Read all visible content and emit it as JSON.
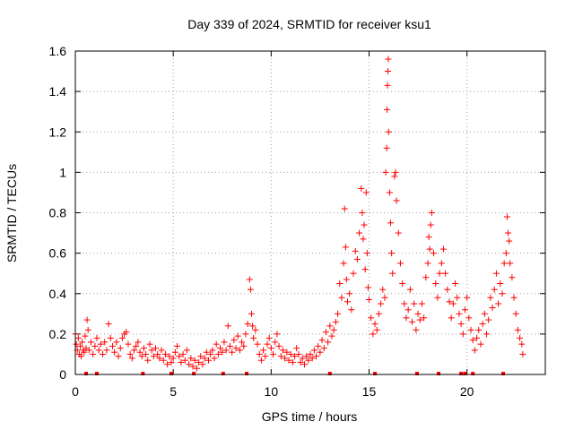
{
  "chart_data": {
    "type": "scatter",
    "title": "Day 339 of 2024, SRMTID for receiver ksu1",
    "xlabel": "GPS time / hours",
    "ylabel": "SRMTID / TECUs",
    "xlim": [
      0,
      24
    ],
    "ylim": [
      0,
      1.6
    ],
    "xticks": [
      0,
      5,
      10,
      15,
      20
    ],
    "xtick_labels": [
      "0",
      "5",
      "10",
      "15",
      "20"
    ],
    "yticks": [
      0,
      0.2,
      0.4,
      0.6,
      0.8,
      1.0,
      1.2,
      1.4,
      1.6
    ],
    "ytick_labels": [
      "0",
      "0.2",
      "0.4",
      "0.6",
      "0.8",
      "1",
      "1.2",
      "1.4",
      "1.6"
    ],
    "grid": true,
    "marker": "plus",
    "color": "#ff0000",
    "series": [
      {
        "name": "SRMTID",
        "points": [
          [
            0.0,
            0.2
          ],
          [
            0.05,
            0.15
          ],
          [
            0.1,
            0.12
          ],
          [
            0.15,
            0.18
          ],
          [
            0.2,
            0.1
          ],
          [
            0.25,
            0.14
          ],
          [
            0.3,
            0.09
          ],
          [
            0.35,
            0.16
          ],
          [
            0.4,
            0.12
          ],
          [
            0.45,
            0.11
          ],
          [
            0.5,
            0.19
          ],
          [
            0.55,
            0.13
          ],
          [
            0.6,
            0.27
          ],
          [
            0.65,
            0.22
          ],
          [
            0.7,
            0.12
          ],
          [
            0.8,
            0.16
          ],
          [
            0.9,
            0.1
          ],
          [
            1.0,
            0.14
          ],
          [
            1.1,
            0.18
          ],
          [
            1.2,
            0.12
          ],
          [
            1.3,
            0.15
          ],
          [
            1.4,
            0.1
          ],
          [
            1.5,
            0.16
          ],
          [
            1.6,
            0.12
          ],
          [
            1.7,
            0.25
          ],
          [
            1.8,
            0.18
          ],
          [
            1.9,
            0.14
          ],
          [
            2.0,
            0.11
          ],
          [
            2.1,
            0.16
          ],
          [
            2.2,
            0.09
          ],
          [
            2.3,
            0.13
          ],
          [
            2.4,
            0.18
          ],
          [
            2.5,
            0.2
          ],
          [
            2.6,
            0.21
          ],
          [
            2.7,
            0.15
          ],
          [
            2.8,
            0.1
          ],
          [
            2.9,
            0.08
          ],
          [
            3.0,
            0.12
          ],
          [
            3.1,
            0.14
          ],
          [
            3.2,
            0.16
          ],
          [
            3.3,
            0.11
          ],
          [
            3.4,
            0.09
          ],
          [
            3.5,
            0.13
          ],
          [
            3.6,
            0.1
          ],
          [
            3.7,
            0.07
          ],
          [
            3.8,
            0.15
          ],
          [
            3.9,
            0.12
          ],
          [
            4.0,
            0.09
          ],
          [
            4.1,
            0.13
          ],
          [
            4.2,
            0.1
          ],
          [
            4.3,
            0.08
          ],
          [
            4.4,
            0.12
          ],
          [
            4.5,
            0.07
          ],
          [
            4.6,
            0.1
          ],
          [
            4.7,
            0.05
          ],
          [
            4.8,
            0.09
          ],
          [
            4.9,
            0.06
          ],
          [
            5.0,
            0.08
          ],
          [
            5.1,
            0.11
          ],
          [
            5.2,
            0.14
          ],
          [
            5.3,
            0.09
          ],
          [
            5.4,
            0.06
          ],
          [
            5.5,
            0.1
          ],
          [
            5.6,
            0.07
          ],
          [
            5.7,
            0.12
          ],
          [
            5.8,
            0.05
          ],
          [
            5.9,
            0.08
          ],
          [
            6.0,
            0.04
          ],
          [
            6.1,
            0.07
          ],
          [
            6.2,
            0.03
          ],
          [
            6.3,
            0.06
          ],
          [
            6.4,
            0.09
          ],
          [
            6.5,
            0.05
          ],
          [
            6.6,
            0.08
          ],
          [
            6.7,
            0.11
          ],
          [
            6.8,
            0.07
          ],
          [
            6.9,
            0.1
          ],
          [
            7.0,
            0.12
          ],
          [
            7.1,
            0.08
          ],
          [
            7.2,
            0.15
          ],
          [
            7.3,
            0.1
          ],
          [
            7.4,
            0.13
          ],
          [
            7.5,
            0.11
          ],
          [
            7.6,
            0.16
          ],
          [
            7.7,
            0.12
          ],
          [
            7.8,
            0.24
          ],
          [
            7.9,
            0.14
          ],
          [
            8.0,
            0.11
          ],
          [
            8.1,
            0.17
          ],
          [
            8.2,
            0.13
          ],
          [
            8.3,
            0.19
          ],
          [
            8.4,
            0.12
          ],
          [
            8.5,
            0.16
          ],
          [
            8.6,
            0.14
          ],
          [
            8.7,
            0.2
          ],
          [
            8.8,
            0.25
          ],
          [
            8.9,
            0.47
          ],
          [
            8.95,
            0.42
          ],
          [
            9.0,
            0.3
          ],
          [
            9.05,
            0.24
          ],
          [
            9.1,
            0.18
          ],
          [
            9.2,
            0.22
          ],
          [
            9.3,
            0.15
          ],
          [
            9.4,
            0.1
          ],
          [
            9.5,
            0.07
          ],
          [
            9.6,
            0.12
          ],
          [
            9.7,
            0.09
          ],
          [
            9.8,
            0.15
          ],
          [
            9.9,
            0.18
          ],
          [
            10.0,
            0.13
          ],
          [
            10.1,
            0.1
          ],
          [
            10.2,
            0.16
          ],
          [
            10.3,
            0.2
          ],
          [
            10.4,
            0.14
          ],
          [
            10.5,
            0.09
          ],
          [
            10.6,
            0.12
          ],
          [
            10.7,
            0.08
          ],
          [
            10.8,
            0.11
          ],
          [
            10.9,
            0.07
          ],
          [
            11.0,
            0.1
          ],
          [
            11.1,
            0.06
          ],
          [
            11.2,
            0.09
          ],
          [
            11.3,
            0.13
          ],
          [
            11.4,
            0.1
          ],
          [
            11.5,
            0.06
          ],
          [
            11.6,
            0.08
          ],
          [
            11.7,
            0.05
          ],
          [
            11.8,
            0.09
          ],
          [
            11.9,
            0.07
          ],
          [
            12.0,
            0.1
          ],
          [
            12.1,
            0.08
          ],
          [
            12.2,
            0.12
          ],
          [
            12.3,
            0.09
          ],
          [
            12.4,
            0.14
          ],
          [
            12.5,
            0.11
          ],
          [
            12.6,
            0.17
          ],
          [
            12.7,
            0.13
          ],
          [
            12.8,
            0.21
          ],
          [
            12.9,
            0.16
          ],
          [
            13.0,
            0.24
          ],
          [
            13.1,
            0.19
          ],
          [
            13.2,
            0.22
          ],
          [
            13.3,
            0.26
          ],
          [
            13.4,
            0.3
          ],
          [
            13.5,
            0.45
          ],
          [
            13.6,
            0.38
          ],
          [
            13.7,
            0.55
          ],
          [
            13.75,
            0.82
          ],
          [
            13.8,
            0.63
          ],
          [
            13.85,
            0.47
          ],
          [
            13.9,
            0.36
          ],
          [
            14.0,
            0.4
          ],
          [
            14.1,
            0.32
          ],
          [
            14.2,
            0.5
          ],
          [
            14.3,
            0.61
          ],
          [
            14.4,
            0.57
          ],
          [
            14.5,
            0.7
          ],
          [
            14.6,
            0.92
          ],
          [
            14.65,
            0.8
          ],
          [
            14.7,
            0.67
          ],
          [
            14.75,
            0.74
          ],
          [
            14.8,
            0.52
          ],
          [
            14.85,
            0.9
          ],
          [
            14.9,
            0.6
          ],
          [
            14.95,
            0.43
          ],
          [
            15.0,
            0.37
          ],
          [
            15.1,
            0.28
          ],
          [
            15.2,
            0.2
          ],
          [
            15.3,
            0.25
          ],
          [
            15.4,
            0.22
          ],
          [
            15.5,
            0.3
          ],
          [
            15.6,
            0.35
          ],
          [
            15.7,
            0.42
          ],
          [
            15.8,
            0.38
          ],
          [
            15.85,
            1.0
          ],
          [
            15.9,
            1.12
          ],
          [
            15.92,
            1.31
          ],
          [
            15.94,
            1.43
          ],
          [
            15.96,
            1.5
          ],
          [
            15.98,
            1.56
          ],
          [
            16.0,
            1.2
          ],
          [
            16.05,
            0.9
          ],
          [
            16.1,
            0.75
          ],
          [
            16.15,
            0.6
          ],
          [
            16.2,
            0.5
          ],
          [
            16.3,
            0.98
          ],
          [
            16.35,
            1.0
          ],
          [
            16.4,
            0.86
          ],
          [
            16.5,
            0.7
          ],
          [
            16.6,
            0.55
          ],
          [
            16.7,
            0.45
          ],
          [
            16.8,
            0.35
          ],
          [
            16.9,
            0.28
          ],
          [
            17.0,
            0.32
          ],
          [
            17.1,
            0.42
          ],
          [
            17.2,
            0.26
          ],
          [
            17.3,
            0.35
          ],
          [
            17.4,
            0.22
          ],
          [
            17.5,
            0.3
          ],
          [
            17.6,
            0.27
          ],
          [
            17.7,
            0.35
          ],
          [
            17.8,
            0.28
          ],
          [
            17.9,
            0.48
          ],
          [
            18.0,
            0.55
          ],
          [
            18.05,
            0.68
          ],
          [
            18.1,
            0.62
          ],
          [
            18.15,
            0.74
          ],
          [
            18.2,
            0.8
          ],
          [
            18.3,
            0.6
          ],
          [
            18.4,
            0.45
          ],
          [
            18.5,
            0.38
          ],
          [
            18.6,
            0.5
          ],
          [
            18.7,
            0.55
          ],
          [
            18.8,
            0.62
          ],
          [
            18.9,
            0.5
          ],
          [
            19.0,
            0.42
          ],
          [
            19.1,
            0.36
          ],
          [
            19.2,
            0.28
          ],
          [
            19.3,
            0.35
          ],
          [
            19.4,
            0.45
          ],
          [
            19.5,
            0.38
          ],
          [
            19.6,
            0.3
          ],
          [
            19.7,
            0.25
          ],
          [
            19.8,
            0.2
          ],
          [
            19.9,
            0.32
          ],
          [
            20.0,
            0.38
          ],
          [
            20.1,
            0.28
          ],
          [
            20.2,
            0.22
          ],
          [
            20.3,
            0.17
          ],
          [
            20.4,
            0.12
          ],
          [
            20.5,
            0.18
          ],
          [
            20.6,
            0.22
          ],
          [
            20.7,
            0.15
          ],
          [
            20.8,
            0.25
          ],
          [
            20.9,
            0.3
          ],
          [
            21.0,
            0.2
          ],
          [
            21.1,
            0.27
          ],
          [
            21.2,
            0.38
          ],
          [
            21.3,
            0.33
          ],
          [
            21.4,
            0.42
          ],
          [
            21.5,
            0.5
          ],
          [
            21.6,
            0.35
          ],
          [
            21.7,
            0.45
          ],
          [
            21.8,
            0.4
          ],
          [
            21.9,
            0.55
          ],
          [
            22.0,
            0.6
          ],
          [
            22.05,
            0.78
          ],
          [
            22.1,
            0.7
          ],
          [
            22.15,
            0.66
          ],
          [
            22.2,
            0.55
          ],
          [
            22.3,
            0.48
          ],
          [
            22.4,
            0.38
          ],
          [
            22.5,
            0.3
          ],
          [
            22.6,
            0.22
          ],
          [
            22.7,
            0.18
          ],
          [
            22.8,
            0.15
          ],
          [
            22.85,
            0.1
          ]
        ]
      }
    ],
    "rug_x": [
      0.55,
      1.1,
      3.45,
      4.9,
      6.05,
      7.55,
      8.75,
      13.0,
      15.3,
      17.45,
      18.55,
      19.7,
      19.9,
      20.3,
      21.85
    ]
  }
}
